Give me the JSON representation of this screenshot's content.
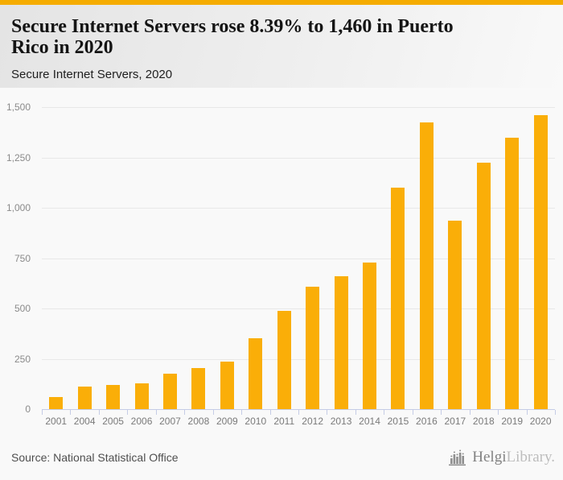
{
  "header": {
    "title_lines": [
      "Secure Internet Servers rose 8.39% to 1,460 in Puerto",
      "Rico in 2020"
    ],
    "subtitle": "Secure Internet Servers, 2020"
  },
  "chart_data": {
    "type": "bar",
    "title": "Secure Internet Servers rose 8.39% to 1,460 in Puerto Rico in 2020",
    "subtitle": "Secure Internet Servers, 2020",
    "categories": [
      "2001",
      "2004",
      "2005",
      "2006",
      "2007",
      "2008",
      "2009",
      "2010",
      "2011",
      "2012",
      "2013",
      "2014",
      "2015",
      "2016",
      "2017",
      "2018",
      "2019",
      "2020"
    ],
    "values": [
      60,
      112,
      120,
      128,
      177,
      205,
      238,
      352,
      490,
      607,
      661,
      727,
      1100,
      1424,
      938,
      1226,
      1347,
      1460
    ],
    "xlabel": "",
    "ylabel": "",
    "ylim": [
      0,
      1500
    ],
    "yticks": [
      0,
      250,
      500,
      750,
      1000,
      1250,
      1500
    ],
    "ytick_labels": [
      "0",
      "250",
      "500",
      "750",
      "1,000",
      "1,250",
      "1,500"
    ],
    "grid": "horizontal",
    "legend": "none",
    "bar_color": "#FAAE08"
  },
  "footer": {
    "source": "Source: National Statistical Office",
    "brand_primary": "Helgi",
    "brand_secondary": "Library."
  },
  "colors": {
    "accent": "#F5AC00",
    "bar": "#FAAE08",
    "gridline": "#e8e8e8",
    "axis": "#c5cce6"
  }
}
